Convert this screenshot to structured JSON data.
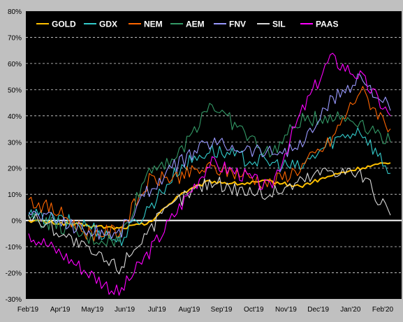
{
  "chart_data": {
    "type": "line",
    "title": "",
    "xlabel": "",
    "ylabel": "",
    "ylim": [
      -30,
      80
    ],
    "yticks": [
      "80%",
      "70%",
      "60%",
      "50%",
      "40%",
      "30%",
      "20%",
      "10%",
      "0%",
      "-10%",
      "-20%",
      "-30%"
    ],
    "yticks_values": [
      80,
      70,
      60,
      50,
      40,
      30,
      20,
      10,
      0,
      -10,
      -20,
      -30
    ],
    "xticks": [
      "Feb'19",
      "Apr'19",
      "May'19",
      "Jun'19",
      "Jul'19",
      "Aug'19",
      "Sep'19",
      "Oct'19",
      "Nov'19",
      "Dec'19",
      "Jan'20",
      "Feb'20"
    ],
    "grid": "horizontal dashed",
    "legend_position": "top",
    "background": "#000000",
    "x": [
      0,
      1,
      2,
      3,
      4,
      5,
      6,
      7,
      8,
      9,
      10,
      11,
      12
    ],
    "series": [
      {
        "name": "GOLD",
        "color": "#ffc000",
        "values": [
          0,
          -1,
          -2,
          -3,
          -1,
          10,
          15,
          14,
          15,
          13,
          17,
          20,
          22
        ]
      },
      {
        "name": "GDX",
        "color": "#33cccc",
        "values": [
          2,
          0,
          -2,
          -8,
          5,
          20,
          27,
          24,
          22,
          20,
          30,
          35,
          18
        ]
      },
      {
        "name": "NEM",
        "color": "#ff6600",
        "values": [
          8,
          3,
          -5,
          -4,
          15,
          17,
          20,
          18,
          14,
          20,
          30,
          50,
          35
        ]
      },
      {
        "name": "AEM",
        "color": "#339966",
        "values": [
          1,
          -2,
          -7,
          -8,
          20,
          25,
          45,
          35,
          25,
          38,
          40,
          38,
          30
        ]
      },
      {
        "name": "FNV",
        "color": "#9999ff",
        "values": [
          3,
          0,
          -4,
          -5,
          12,
          22,
          30,
          28,
          26,
          28,
          45,
          55,
          42
        ]
      },
      {
        "name": "SIL",
        "color": "#d9d9d9",
        "values": [
          2,
          -4,
          -12,
          -18,
          -3,
          8,
          15,
          12,
          10,
          15,
          20,
          18,
          2
        ]
      },
      {
        "name": "PAAS",
        "color": "#ff00ff",
        "values": [
          -5,
          -12,
          -20,
          -28,
          -12,
          5,
          22,
          18,
          12,
          40,
          62,
          55,
          40
        ]
      }
    ]
  }
}
